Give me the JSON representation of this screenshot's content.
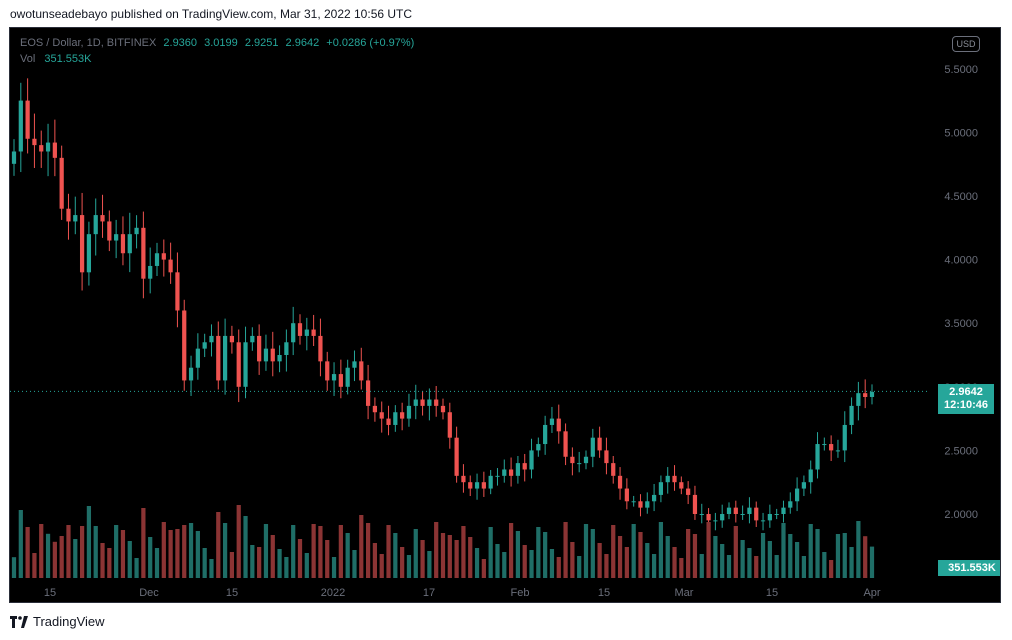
{
  "header": {
    "publisher_line": "owotunseadebayo published on TradingView.com, Mar 31, 2022 10:56 UTC"
  },
  "legend": {
    "symbol": "EOS / Dollar, 1D, BITFINEX",
    "open": "2.9360",
    "high": "3.0199",
    "low": "2.9251",
    "close": "2.9642",
    "change": "+0.0286 (+0.97%)",
    "vol_label": "Vol",
    "vol_value": "351.553K"
  },
  "currency_badge": "USD",
  "price_tag": {
    "price": "2.9642",
    "countdown": "12:10:46"
  },
  "volume_tag": "351.553K",
  "footer": {
    "brand": "TradingView"
  },
  "colors": {
    "up": "#26a69a",
    "down": "#ef5350",
    "background": "#000000",
    "text": "#6b6f7b"
  },
  "chart_data": {
    "type": "candlestick",
    "y_ticks": [
      "5.5000",
      "5.0000",
      "4.5000",
      "4.0000",
      "3.5000",
      "3.0000",
      "2.5000",
      "2.0000"
    ],
    "y_tick_values": [
      5.5,
      5.0,
      4.5,
      4.0,
      3.5,
      3.0,
      2.5,
      2.0
    ],
    "x_ticks": [
      "15",
      "Dec",
      "15",
      "2022",
      "17",
      "Feb",
      "15",
      "Mar",
      "15",
      "Apr"
    ],
    "x_tick_dates": [
      "2021-11-15",
      "2021-12-01",
      "2021-12-15",
      "2022-01-01",
      "2022-01-17",
      "2022-02-01",
      "2022-02-15",
      "2022-03-01",
      "2022-03-15",
      "2022-04-01"
    ],
    "ylim": [
      1.5,
      5.8
    ],
    "last_price": 2.9642,
    "close_series": [
      4.85,
      5.25,
      4.95,
      4.9,
      4.85,
      4.92,
      4.8,
      4.4,
      4.3,
      4.35,
      3.9,
      4.2,
      4.35,
      4.3,
      4.15,
      4.2,
      4.05,
      4.2,
      4.25,
      3.85,
      3.95,
      4.05,
      4.0,
      3.9,
      3.6,
      3.05,
      3.15,
      3.3,
      3.35,
      3.4,
      3.05,
      3.4,
      3.35,
      3.0,
      3.35,
      3.4,
      3.2,
      3.3,
      3.2,
      3.25,
      3.35,
      3.5,
      3.4,
      3.45,
      3.4,
      3.2,
      3.05,
      3.1,
      3.0,
      3.15,
      3.2,
      3.05,
      2.85,
      2.8,
      2.75,
      2.7,
      2.8,
      2.75,
      2.85,
      2.9,
      2.85,
      2.9,
      2.85,
      2.8,
      2.6,
      2.3,
      2.25,
      2.2,
      2.25,
      2.2,
      2.3,
      2.3,
      2.35,
      2.3,
      2.4,
      2.35,
      2.5,
      2.55,
      2.7,
      2.75,
      2.65,
      2.45,
      2.4,
      2.4,
      2.45,
      2.6,
      2.5,
      2.4,
      2.3,
      2.2,
      2.1,
      2.1,
      2.05,
      2.1,
      2.15,
      2.25,
      2.3,
      2.25,
      2.2,
      2.15,
      2.0,
      2.0,
      1.95,
      1.95,
      2.0,
      2.05,
      2.0,
      2.0,
      2.05,
      1.95,
      1.95,
      2.0,
      2.0,
      2.05,
      2.1,
      2.2,
      2.25,
      2.35,
      2.55,
      2.55,
      2.5,
      2.5,
      2.7,
      2.85,
      2.95,
      2.92,
      2.96
    ]
  }
}
